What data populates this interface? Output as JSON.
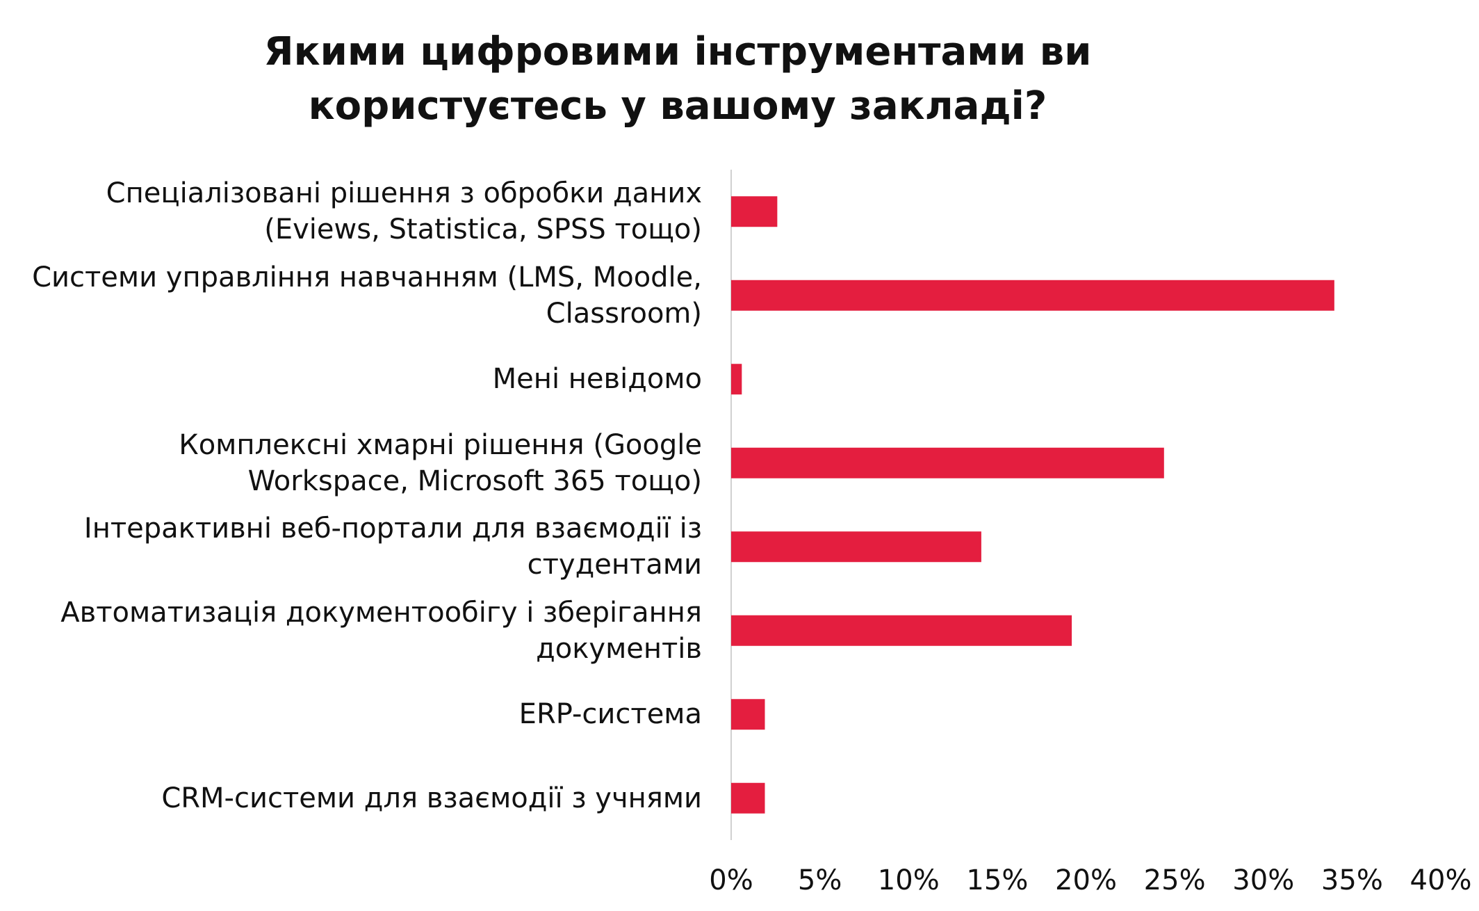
{
  "chart_data": {
    "type": "bar",
    "orientation": "horizontal",
    "title": "Якими цифровими інструментами ви користуєтесь у вашому закладі?",
    "categories": [
      "Спеціалізовані рішення з обробки даних (Eviews, Statistica, SPSS тощо)",
      "Системи управління навчанням (LMS, Moodle, Classroom)",
      "Мені невідомо",
      "Комплексні хмарні рішення (Google Workspace, Microsoft 365 тощо)",
      "Інтерактивні веб-портали для взаємодії із студентами",
      "Автоматизація документообігу і зберігання документів",
      "ERP-система",
      "CRM-системи для взаємодії з учнями"
    ],
    "values": [
      2.6,
      34.0,
      0.6,
      24.4,
      14.1,
      19.2,
      1.9,
      1.9
    ],
    "color": "#e41e3f",
    "xlim": [
      0,
      40
    ],
    "xticks": [
      {
        "value": 0,
        "label": "0%"
      },
      {
        "value": 5,
        "label": "5%"
      },
      {
        "value": 10,
        "label": "10%"
      },
      {
        "value": 15,
        "label": "15%"
      },
      {
        "value": 20,
        "label": "20%"
      },
      {
        "value": 25,
        "label": "25%"
      },
      {
        "value": 30,
        "label": "30%"
      },
      {
        "value": 35,
        "label": "35%"
      },
      {
        "value": 40,
        "label": "40%"
      }
    ]
  }
}
